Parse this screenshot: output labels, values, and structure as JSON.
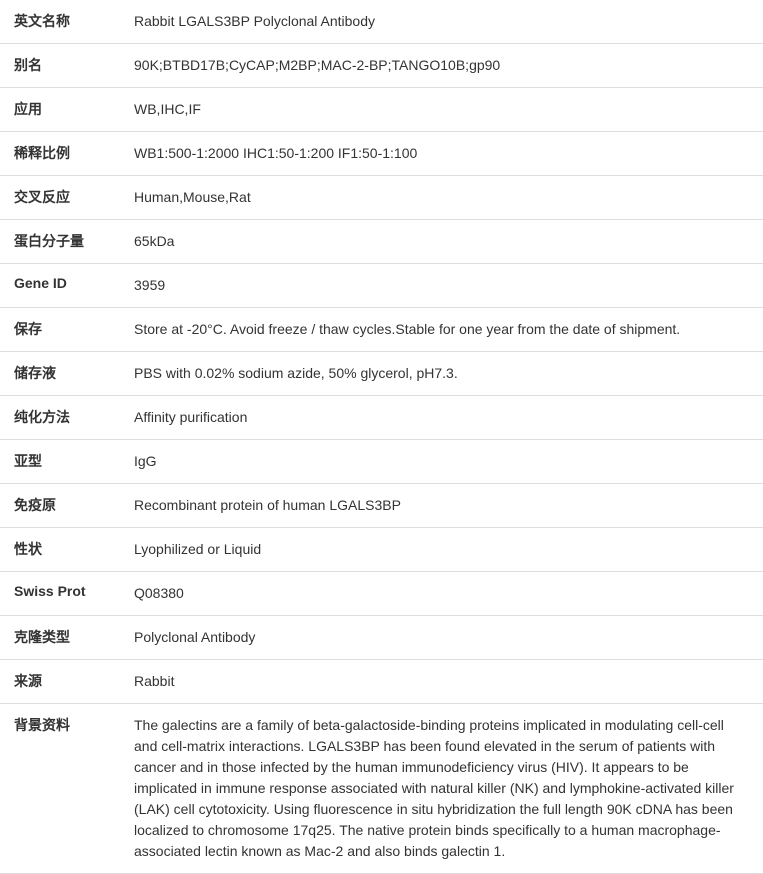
{
  "rows": [
    {
      "label": "英文名称",
      "value": "Rabbit LGALS3BP Polyclonal Antibody"
    },
    {
      "label": "别名",
      "value": "90K;BTBD17B;CyCAP;M2BP;MAC-2-BP;TANGO10B;gp90"
    },
    {
      "label": "应用",
      "value": "WB,IHC,IF"
    },
    {
      "label": "稀释比例",
      "value": "WB1:500-1:2000 IHC1:50-1:200 IF1:50-1:100"
    },
    {
      "label": "交叉反应",
      "value": "Human,Mouse,Rat"
    },
    {
      "label": "蛋白分子量",
      "value": "65kDa"
    },
    {
      "label": "Gene ID",
      "value": "3959"
    },
    {
      "label": "保存",
      "value": "Store at -20°C. Avoid freeze / thaw cycles.Stable for one year from the date of shipment."
    },
    {
      "label": "储存液",
      "value": "PBS with 0.02% sodium azide, 50% glycerol, pH7.3."
    },
    {
      "label": "纯化方法",
      "value": "Affinity purification"
    },
    {
      "label": "亚型",
      "value": "IgG"
    },
    {
      "label": "免疫原",
      "value": "Recombinant protein of human LGALS3BP"
    },
    {
      "label": "性状",
      "value": "Lyophilized or Liquid"
    },
    {
      "label": "Swiss Prot",
      "value": "Q08380"
    },
    {
      "label": "克隆类型",
      "value": "Polyclonal Antibody"
    },
    {
      "label": "来源",
      "value": "Rabbit"
    },
    {
      "label": "背景资料",
      "value": "The galectins are a family of beta-galactoside-binding proteins implicated in modulating cell-cell and cell-matrix interactions. LGALS3BP has been found elevated in the serum of patients with cancer and in those infected by the human immunodeficiency virus (HIV). It appears to be implicated in immune response associated with natural killer (NK) and lymphokine-activated killer (LAK) cell cytotoxicity. Using fluorescence in situ hybridization the full length 90K cDNA has been localized to chromosome 17q25. The native protein binds specifically to a human macrophage-associated lectin known as Mac-2 and also binds galectin 1."
    }
  ]
}
